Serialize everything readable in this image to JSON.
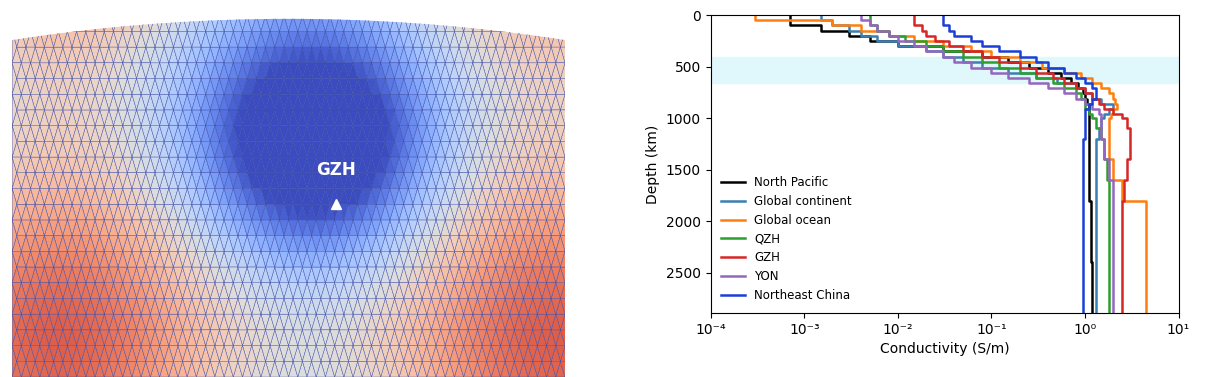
{
  "map": {
    "station": "GZH"
  },
  "chart_data": {
    "type": "line",
    "xlabel": "Conductivity (S/m)",
    "ylabel": "Depth (km)",
    "log": "x",
    "legend": "lower left",
    "line_style": "solid",
    "xlim": [
      0.0001,
      10
    ],
    "xticks": [
      {
        "value": 0.0001,
        "label": "10⁻⁴"
      },
      {
        "value": 0.001,
        "label": "10⁻³"
      },
      {
        "value": 0.01,
        "label": "10⁻²"
      },
      {
        "value": 0.1,
        "label": "10⁻¹"
      },
      {
        "value": 1,
        "label": "10⁰"
      },
      {
        "value": 10,
        "label": "10¹"
      }
    ],
    "ylim": [
      2890,
      0
    ],
    "yticks": [
      0,
      500,
      1000,
      1500,
      2000,
      2500
    ],
    "shaded_depth_range": [
      410,
      660
    ],
    "depth_bins": [
      0,
      50,
      100,
      150,
      200,
      250,
      300,
      350,
      410,
      460,
      510,
      560,
      610,
      660,
      710,
      760,
      810,
      860,
      910,
      960,
      1000,
      1100,
      1200,
      1400,
      1600,
      1800,
      2000,
      2200,
      2400,
      2600,
      2890
    ],
    "series": [
      {
        "name": "North Pacific",
        "color": "#000000",
        "values": [
          0.0007,
          0.0007,
          0.0015,
          0.003,
          0.005,
          0.01,
          0.03,
          0.08,
          0.15,
          0.25,
          0.4,
          0.55,
          0.7,
          0.85,
          0.95,
          1.0,
          1.05,
          1.1,
          1.1,
          1.1,
          1.1,
          1.1,
          1.1,
          1.1,
          1.1,
          1.15,
          1.15,
          1.15,
          1.2,
          1.2
        ]
      },
      {
        "name": "Global continent",
        "color": "#3a7fb0",
        "values": [
          0.0015,
          0.002,
          0.003,
          0.004,
          0.006,
          0.01,
          0.02,
          0.03,
          0.05,
          0.08,
          0.15,
          0.3,
          0.5,
          0.8,
          1.0,
          1.2,
          1.5,
          2.0,
          1.8,
          1.6,
          1.5,
          1.4,
          1.3,
          1.3,
          1.3,
          1.3,
          1.3,
          1.3,
          1.3,
          1.3
        ]
      },
      {
        "name": "Global ocean",
        "color": "#ff7f0e",
        "values": [
          0.0003,
          0.002,
          0.004,
          0.008,
          0.015,
          0.03,
          0.06,
          0.1,
          0.2,
          0.35,
          0.6,
          0.9,
          1.2,
          1.5,
          1.8,
          2.0,
          2.1,
          2.2,
          2.0,
          1.9,
          1.8,
          1.8,
          1.8,
          2.0,
          2.5,
          4.5,
          4.5,
          4.5,
          4.5,
          4.5
        ]
      },
      {
        "name": "QZH",
        "color": "#2ca02c",
        "values": [
          0.005,
          0.005,
          0.006,
          0.008,
          0.012,
          0.02,
          0.03,
          0.05,
          0.08,
          0.12,
          0.2,
          0.3,
          0.45,
          0.6,
          0.8,
          0.9,
          1.0,
          1.0,
          1.1,
          1.2,
          1.3,
          1.5,
          1.6,
          1.7,
          1.8,
          1.8,
          1.8,
          1.8,
          1.8,
          1.8
        ]
      },
      {
        "name": "GZH",
        "color": "#d62728",
        "values": [
          0.015,
          0.015,
          0.018,
          0.02,
          0.025,
          0.035,
          0.05,
          0.08,
          0.12,
          0.2,
          0.3,
          0.45,
          0.6,
          0.8,
          1.0,
          1.2,
          1.4,
          1.6,
          2.0,
          2.5,
          2.8,
          3.0,
          3.0,
          2.8,
          2.6,
          2.5,
          2.5,
          2.5,
          2.5,
          2.5
        ]
      },
      {
        "name": "YON",
        "color": "#9467bd",
        "values": [
          0.004,
          0.005,
          0.006,
          0.008,
          0.01,
          0.015,
          0.02,
          0.03,
          0.04,
          0.06,
          0.1,
          0.15,
          0.25,
          0.4,
          0.6,
          0.8,
          1.0,
          1.2,
          1.4,
          1.5,
          1.5,
          1.5,
          1.6,
          1.8,
          2.0,
          2.0,
          2.0,
          2.0,
          2.0,
          2.0
        ]
      },
      {
        "name": "Northeast China",
        "color": "#1a3fd6",
        "values": [
          0.03,
          0.03,
          0.035,
          0.04,
          0.06,
          0.08,
          0.12,
          0.2,
          0.3,
          0.4,
          0.6,
          0.8,
          1.0,
          1.2,
          1.3,
          1.3,
          1.2,
          1.1,
          1.0,
          1.0,
          1.0,
          1.0,
          0.95,
          0.95,
          0.95,
          0.95,
          0.95,
          0.95,
          0.95,
          0.95
        ]
      }
    ]
  }
}
